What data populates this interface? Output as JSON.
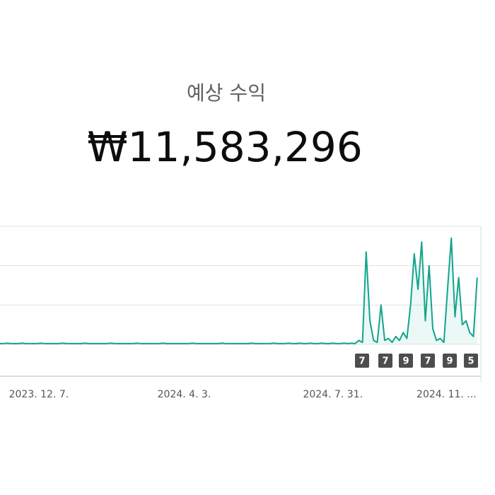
{
  "header": {
    "title": "예상 수익",
    "amount": "₩11,583,296"
  },
  "chart_data": {
    "type": "line",
    "xlim": [
      0,
      130
    ],
    "xticks": [
      {
        "value": 10.5,
        "label": "2023. 12. 7."
      },
      {
        "value": 49.8,
        "label": "2024. 4. 3."
      },
      {
        "value": 90,
        "label": "2024. 7. 31."
      },
      {
        "value": 120.7,
        "label": "2024. 11. ..."
      }
    ],
    "ylim": [
      0,
      3
    ],
    "yticks": [
      0,
      1,
      2,
      3
    ],
    "grid": true,
    "series": [
      {
        "color": "#12a48c",
        "values": [
          0.02,
          0.02,
          0.03,
          0.02,
          0.02,
          0.02,
          0.03,
          0.02,
          0.02,
          0.02,
          0.02,
          0.03,
          0.02,
          0.02,
          0.02,
          0.02,
          0.02,
          0.03,
          0.02,
          0.02,
          0.02,
          0.02,
          0.02,
          0.03,
          0.02,
          0.02,
          0.02,
          0.02,
          0.02,
          0.02,
          0.03,
          0.02,
          0.02,
          0.02,
          0.02,
          0.02,
          0.02,
          0.03,
          0.02,
          0.02,
          0.02,
          0.02,
          0.02,
          0.02,
          0.03,
          0.02,
          0.02,
          0.02,
          0.02,
          0.02,
          0.02,
          0.02,
          0.03,
          0.02,
          0.02,
          0.02,
          0.02,
          0.02,
          0.02,
          0.02,
          0.03,
          0.02,
          0.02,
          0.02,
          0.02,
          0.02,
          0.02,
          0.02,
          0.03,
          0.02,
          0.02,
          0.02,
          0.02,
          0.02,
          0.03,
          0.02,
          0.02,
          0.02,
          0.03,
          0.02,
          0.02,
          0.03,
          0.02,
          0.02,
          0.03,
          0.02,
          0.02,
          0.03,
          0.02,
          0.02,
          0.03,
          0.02,
          0.02,
          0.03,
          0.02,
          0.03,
          0.02,
          0.1,
          0.05,
          2.35,
          0.6,
          0.1,
          0.05,
          1.0,
          0.1,
          0.15,
          0.05,
          0.2,
          0.1,
          0.3,
          0.15,
          1.0,
          2.3,
          1.4,
          2.6,
          0.6,
          2.0,
          0.4,
          0.1,
          0.15,
          0.05,
          1.4,
          2.7,
          0.7,
          1.7,
          0.5,
          0.6,
          0.3,
          0.2,
          1.7
        ]
      }
    ],
    "annotations": [
      "7",
      "7",
      "9",
      "7",
      "9",
      "5"
    ]
  }
}
